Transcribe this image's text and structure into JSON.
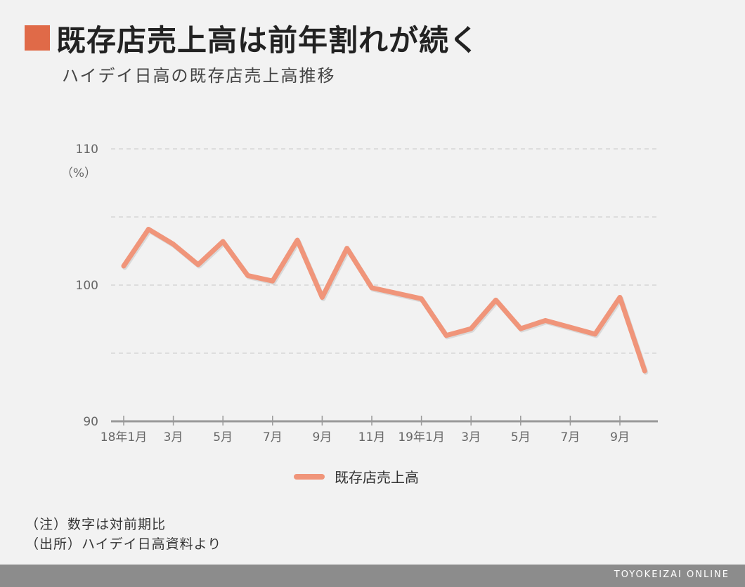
{
  "header": {
    "title": "既存店売上高は前年割れが続く",
    "subtitle": "ハイデイ日高の既存店売上高推移"
  },
  "notes": {
    "note1": "（注）数字は対前期比",
    "note2": "（出所）ハイデイ日高資料より"
  },
  "footer": {
    "brand": "TOYOKEIZAI ONLINE"
  },
  "colors": {
    "accent": "#e06a48",
    "line": "#f0957a",
    "grid": "#d6d6d6",
    "axis": "#999999"
  },
  "chart_data": {
    "type": "line",
    "title": "ハイデイ日高の既存店売上高推移",
    "ylabel": "（%）",
    "xlabel": "",
    "ylim": [
      90,
      110
    ],
    "grid": true,
    "legend_position": "bottom",
    "y_ticks": [
      {
        "value": 110,
        "label": "110"
      },
      {
        "value": 100,
        "label": "100"
      },
      {
        "value": 90,
        "label": "90"
      }
    ],
    "y_gridlines": [
      110,
      105,
      100,
      95
    ],
    "x_tick_labels": [
      {
        "index": 0,
        "label": "18年1月"
      },
      {
        "index": 2,
        "label": "3月"
      },
      {
        "index": 4,
        "label": "5月"
      },
      {
        "index": 6,
        "label": "7月"
      },
      {
        "index": 8,
        "label": "9月"
      },
      {
        "index": 10,
        "label": "11月"
      },
      {
        "index": 12,
        "label": "19年1月"
      },
      {
        "index": 14,
        "label": "3月"
      },
      {
        "index": 16,
        "label": "5月"
      },
      {
        "index": 18,
        "label": "7月"
      },
      {
        "index": 20,
        "label": "9月"
      }
    ],
    "categories": [
      "18年1月",
      "18年2月",
      "18年3月",
      "18年4月",
      "18年5月",
      "18年6月",
      "18年7月",
      "18年8月",
      "18年9月",
      "18年10月",
      "18年11月",
      "18年12月",
      "19年1月",
      "19年2月",
      "19年3月",
      "19年4月",
      "19年5月",
      "19年6月",
      "19年7月",
      "19年8月",
      "19年9月",
      "19年10月"
    ],
    "series": [
      {
        "name": "既存店売上高",
        "values": [
          101.4,
          104.1,
          103.0,
          101.5,
          103.2,
          100.7,
          100.3,
          103.3,
          99.1,
          102.7,
          99.8,
          99.4,
          99.0,
          96.3,
          96.8,
          98.9,
          96.8,
          97.4,
          96.9,
          96.4,
          99.1,
          93.7
        ]
      }
    ]
  }
}
